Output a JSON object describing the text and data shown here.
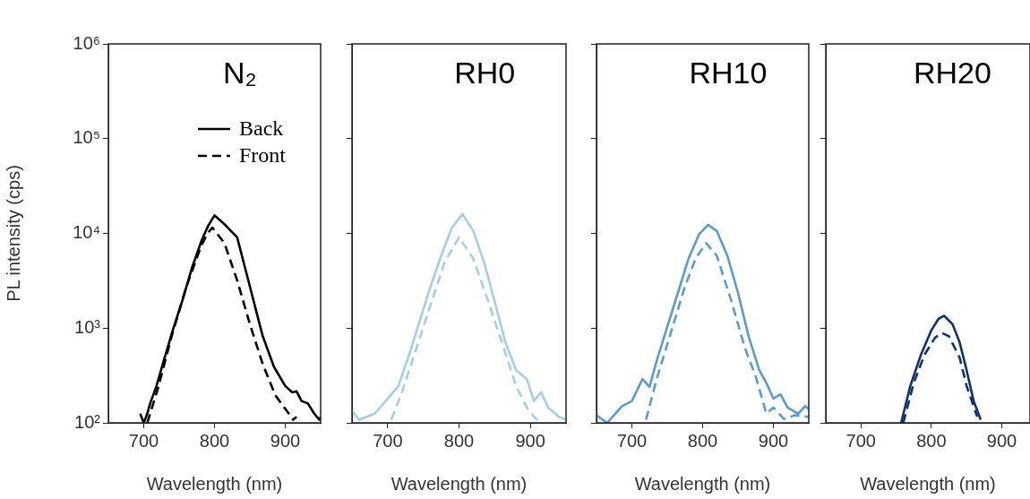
{
  "chart_data": [
    {
      "type": "line",
      "title": "N₂",
      "xlabel": "Wavelength (nm)",
      "ylabel": "PL intensity (cps)",
      "log": "y",
      "xlim": [
        650,
        950
      ],
      "xticks": [
        700,
        800,
        900
      ],
      "ylim": [
        100,
        1000000
      ],
      "yticks": [
        {
          "value": 100,
          "label": "10²"
        },
        {
          "value": 1000,
          "label": "10³"
        },
        {
          "value": 10000,
          "label": "10⁴"
        },
        {
          "value": 100000,
          "label": "10⁵"
        },
        {
          "value": 1000000,
          "label": "10⁶"
        }
      ],
      "legend": "top right",
      "series": [
        {
          "name": "Back",
          "color": "#000000",
          "line_style": "solid",
          "x": [
            695,
            700,
            705,
            709,
            718,
            727,
            741,
            755,
            768,
            782,
            791,
            800,
            814,
            832,
            850,
            868,
            884,
            900,
            910,
            916,
            923,
            932,
            941,
            948,
            950
          ],
          "values": [
            125,
            100,
            125,
            160,
            245,
            420,
            950,
            2000,
            4300,
            8500,
            12000,
            15500,
            12500,
            9100,
            2750,
            830,
            390,
            245,
            210,
            215,
            170,
            160,
            125,
            108,
            115
          ]
        },
        {
          "name": "Front",
          "color": "#000000",
          "line_style": "dashed",
          "x": [
            705,
            720,
            740,
            760,
            780,
            790,
            797,
            814,
            832,
            850,
            868,
            886,
            905,
            911,
            916
          ],
          "values": [
            100,
            230,
            850,
            2700,
            7000,
            10000,
            11500,
            7900,
            3200,
            1100,
            420,
            195,
            125,
            108,
            116
          ]
        }
      ]
    },
    {
      "type": "line",
      "title": "RH0",
      "xlabel": "Wavelength (nm)",
      "log": "y",
      "tick_labels": "x",
      "xlim": [
        650,
        950
      ],
      "xticks": [
        700,
        800,
        900
      ],
      "ylim": [
        100,
        1000000
      ],
      "yticks": [
        {
          "value": 100,
          "label": null
        },
        {
          "value": 1000,
          "label": null
        },
        {
          "value": 10000,
          "label": null
        },
        {
          "value": 100000,
          "label": null
        },
        {
          "value": 1000000,
          "label": null
        }
      ],
      "series": [
        {
          "color": "#a6cde6",
          "line_style": "solid",
          "x": [
            650,
            660,
            682,
            700,
            715,
            730,
            745,
            760,
            775,
            790,
            805,
            820,
            835,
            850,
            865,
            880,
            895,
            905,
            915,
            925,
            940,
            950
          ],
          "values": [
            135,
            108,
            125,
            180,
            245,
            520,
            1200,
            2750,
            5800,
            11500,
            16000,
            10600,
            5000,
            1900,
            710,
            360,
            290,
            170,
            210,
            145,
            116,
            108
          ]
        },
        {
          "color": "#a6cde6",
          "line_style": "dashed",
          "x": [
            705,
            720,
            740,
            760,
            780,
            800,
            820,
            840,
            860,
            880,
            895,
            905,
            915
          ],
          "values": [
            108,
            210,
            600,
            1750,
            5000,
            9100,
            5400,
            2000,
            710,
            245,
            145,
            116,
            100
          ]
        }
      ]
    },
    {
      "type": "line",
      "title": "RH10",
      "xlabel": "Wavelength (nm)",
      "log": "y",
      "tick_labels": "x",
      "xlim": [
        650,
        950
      ],
      "xticks": [
        700,
        800,
        900
      ],
      "ylim": [
        100,
        1000000
      ],
      "yticks": [
        {
          "value": 100,
          "label": null
        },
        {
          "value": 1000,
          "label": null
        },
        {
          "value": 10000,
          "label": null
        },
        {
          "value": 100000,
          "label": null
        },
        {
          "value": 1000000,
          "label": null
        }
      ],
      "series": [
        {
          "color": "#5b9bd0",
          "line_style": "solid",
          "x": [
            650,
            665,
            686,
            700,
            715,
            725,
            735,
            750,
            765,
            780,
            795,
            808,
            820,
            835,
            850,
            865,
            880,
            890,
            900,
            910,
            920,
            935,
            945,
            950
          ],
          "values": [
            120,
            100,
            150,
            170,
            290,
            240,
            450,
            1030,
            2350,
            5400,
            9800,
            12300,
            10600,
            5800,
            2350,
            820,
            360,
            265,
            180,
            200,
            145,
            125,
            150,
            140
          ]
        },
        {
          "color": "#5b9bd0",
          "line_style": "dashed",
          "x": [
            720,
            735,
            755,
            775,
            790,
            805,
            820,
            840,
            860,
            875,
            890,
            900,
            915,
            930,
            950
          ],
          "values": [
            108,
            290,
            890,
            2750,
            5400,
            7900,
            5800,
            2000,
            610,
            310,
            125,
            145,
            110,
            120,
            116
          ]
        }
      ]
    },
    {
      "type": "line",
      "title": "RH20",
      "xlabel": "Wavelength (nm)",
      "log": "y",
      "tick_labels": "x",
      "xlim": [
        650,
        940
      ],
      "xticks": [
        700,
        800,
        900
      ],
      "ylim": [
        100,
        1000000
      ],
      "yticks": [
        {
          "value": 100,
          "label": null
        },
        {
          "value": 1000,
          "label": null
        },
        {
          "value": 10000,
          "label": null
        },
        {
          "value": 100000,
          "label": null
        },
        {
          "value": 1000000,
          "label": null
        }
      ],
      "series": [
        {
          "color": "#0e3270",
          "line_style": "solid",
          "x": [
            757,
            770,
            785,
            800,
            810,
            818,
            830,
            840,
            850,
            860,
            870
          ],
          "values": [
            100,
            245,
            520,
            950,
            1250,
            1350,
            1100,
            710,
            360,
            170,
            108
          ]
        },
        {
          "color": "#0e3270",
          "line_style": "dashed",
          "x": [
            760,
            775,
            790,
            805,
            815,
            825,
            840,
            850,
            865
          ],
          "values": [
            100,
            265,
            520,
            790,
            890,
            820,
            490,
            245,
            116
          ]
        }
      ]
    }
  ]
}
